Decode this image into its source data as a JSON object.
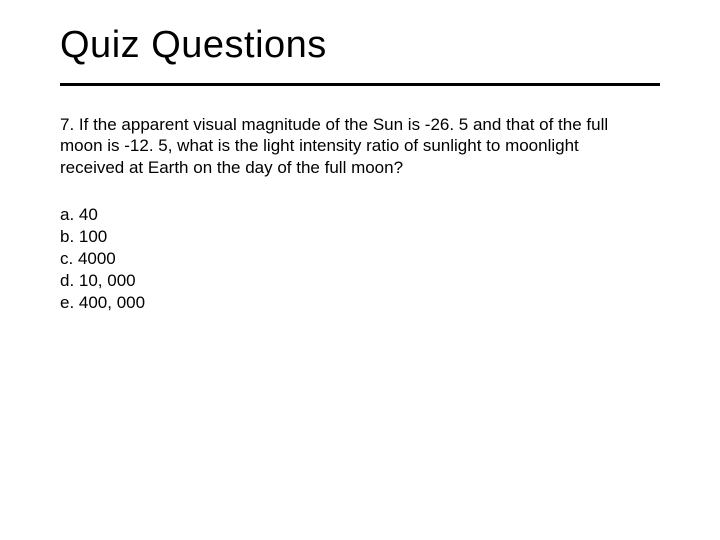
{
  "slide": {
    "title": "Quiz Questions",
    "question": "7. If the apparent visual magnitude of the Sun is -26. 5 and that of the full moon is -12. 5, what is the light intensity ratio of sunlight to moonlight received at Earth on the day of the full moon?",
    "options": [
      "a. 40",
      "b. 100",
      "c. 4000",
      "d. 10, 000",
      "e. 400, 000"
    ],
    "colors": {
      "background": "#ffffff",
      "text": "#000000",
      "rule": "#000000"
    },
    "typography": {
      "title_fontsize": 38,
      "body_fontsize": 17,
      "font_family": "Arial"
    }
  }
}
